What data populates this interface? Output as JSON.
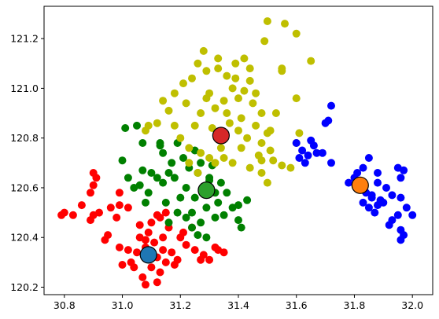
{
  "chart_data": {
    "type": "scatter",
    "title": "",
    "xlabel": "",
    "ylabel": "",
    "xlim": [
      30.73,
      32.07
    ],
    "ylim": [
      120.17,
      121.33
    ],
    "x_ticks": [
      "30.8",
      "31.0",
      "31.2",
      "31.4",
      "31.6",
      "31.8",
      "32.0"
    ],
    "y_ticks": [
      "120.2",
      "120.4",
      "120.6",
      "120.8",
      "121.0",
      "121.2"
    ],
    "grid": false,
    "legend": "none",
    "clusters": [
      {
        "color": "#ff0000",
        "centroid": {
          "x": 31.09,
          "y": 120.33,
          "color": "#1f77b4"
        },
        "x_range": [
          30.78,
          31.36
        ],
        "y_range": [
          120.22,
          120.67
        ],
        "points": [
          [
            31.12,
            120.32
          ],
          [
            31.1,
            120.28
          ],
          [
            31.08,
            120.36
          ],
          [
            31.15,
            120.3
          ],
          [
            31.05,
            120.34
          ],
          [
            31.13,
            120.26
          ],
          [
            31.07,
            120.24
          ],
          [
            31.11,
            120.38
          ],
          [
            31.17,
            120.34
          ],
          [
            31.03,
            120.3
          ],
          [
            31.09,
            120.42
          ],
          [
            31.14,
            120.4
          ],
          [
            31.06,
            120.4
          ],
          [
            31.18,
            120.29
          ],
          [
            31.02,
            120.35
          ],
          [
            31.1,
            120.46
          ],
          [
            31.13,
            120.48
          ],
          [
            31.16,
            120.44
          ],
          [
            30.99,
            120.36
          ],
          [
            31.2,
            120.4
          ],
          [
            31.22,
            120.37
          ],
          [
            31.25,
            120.35
          ],
          [
            31.28,
            120.33
          ],
          [
            31.3,
            120.31
          ],
          [
            31.33,
            120.35
          ],
          [
            31.35,
            120.34
          ],
          [
            31.21,
            120.42
          ],
          [
            31.24,
            120.44
          ],
          [
            31.02,
            120.52
          ],
          [
            30.98,
            120.48
          ],
          [
            30.96,
            120.52
          ],
          [
            30.92,
            120.5
          ],
          [
            30.9,
            120.49
          ],
          [
            30.86,
            120.53
          ],
          [
            30.83,
            120.49
          ],
          [
            30.8,
            120.5
          ],
          [
            30.79,
            120.49
          ],
          [
            30.89,
            120.58
          ],
          [
            30.9,
            120.61
          ],
          [
            30.91,
            120.64
          ],
          [
            30.9,
            120.66
          ],
          [
            30.99,
            120.58
          ],
          [
            30.99,
            120.53
          ],
          [
            30.95,
            120.41
          ],
          [
            30.94,
            120.39
          ],
          [
            30.89,
            120.47
          ],
          [
            31.12,
            120.22
          ],
          [
            31.08,
            120.21
          ],
          [
            31.04,
            120.28
          ],
          [
            31.0,
            120.29
          ],
          [
            31.14,
            120.35
          ],
          [
            31.19,
            120.31
          ],
          [
            31.06,
            120.45
          ],
          [
            31.15,
            120.5
          ],
          [
            31.12,
            120.49
          ],
          [
            31.08,
            120.39
          ],
          [
            31.27,
            120.31
          ],
          [
            31.32,
            120.36
          ]
        ]
      },
      {
        "color": "#008000",
        "centroid": {
          "x": 31.29,
          "y": 120.59,
          "color": "#2ca02c"
        },
        "x_range": [
          30.98,
          31.42
        ],
        "y_range": [
          120.39,
          120.84
        ],
        "points": [
          [
            31.28,
            120.6
          ],
          [
            31.25,
            120.56
          ],
          [
            31.3,
            120.64
          ],
          [
            31.32,
            120.58
          ],
          [
            31.26,
            120.66
          ],
          [
            31.22,
            120.6
          ],
          [
            31.34,
            120.62
          ],
          [
            31.29,
            120.52
          ],
          [
            31.24,
            120.5
          ],
          [
            31.33,
            120.54
          ],
          [
            31.2,
            120.56
          ],
          [
            31.36,
            120.58
          ],
          [
            31.27,
            120.7
          ],
          [
            31.23,
            120.68
          ],
          [
            31.31,
            120.69
          ],
          [
            31.38,
            120.52
          ],
          [
            31.18,
            120.64
          ],
          [
            31.21,
            120.72
          ],
          [
            31.16,
            120.66
          ],
          [
            31.14,
            120.62
          ],
          [
            31.12,
            120.64
          ],
          [
            31.1,
            120.66
          ],
          [
            31.17,
            120.7
          ],
          [
            31.14,
            120.74
          ],
          [
            31.19,
            120.78
          ],
          [
            31.13,
            120.78
          ],
          [
            31.07,
            120.67
          ],
          [
            31.04,
            120.6
          ],
          [
            31.09,
            120.58
          ],
          [
            31.15,
            120.54
          ],
          [
            31.19,
            120.5
          ],
          [
            31.16,
            120.46
          ],
          [
            31.24,
            120.44
          ],
          [
            31.27,
            120.46
          ],
          [
            31.29,
            120.4
          ],
          [
            31.26,
            120.41
          ],
          [
            31.35,
            120.49
          ],
          [
            31.4,
            120.47
          ],
          [
            31.41,
            120.44
          ],
          [
            31.4,
            120.53
          ],
          [
            31.43,
            120.55
          ],
          [
            31.06,
            120.61
          ],
          [
            31.02,
            120.64
          ],
          [
            31.0,
            120.71
          ],
          [
            31.01,
            120.84
          ],
          [
            31.05,
            120.85
          ],
          [
            31.07,
            120.78
          ],
          [
            31.13,
            120.77
          ],
          [
            31.25,
            120.75
          ],
          [
            31.3,
            120.63
          ],
          [
            31.32,
            120.48
          ],
          [
            31.22,
            120.48
          ],
          [
            31.08,
            120.54
          ]
        ]
      },
      {
        "color": "#bfbf00",
        "centroid": {
          "x": 31.34,
          "y": 120.81,
          "color": "#d62728"
        },
        "x_range": [
          31.07,
          31.68
        ],
        "y_range": [
          120.61,
          121.28
        ],
        "points": [
          [
            31.35,
            120.95
          ],
          [
            31.38,
            121.0
          ],
          [
            31.32,
            120.92
          ],
          [
            31.4,
            120.96
          ],
          [
            31.36,
            121.05
          ],
          [
            31.42,
            120.99
          ],
          [
            31.3,
            120.98
          ],
          [
            31.44,
            121.03
          ],
          [
            31.33,
            121.08
          ],
          [
            31.39,
            121.1
          ],
          [
            31.29,
            121.07
          ],
          [
            31.45,
            120.94
          ],
          [
            31.41,
            120.88
          ],
          [
            31.37,
            120.86
          ],
          [
            31.31,
            120.84
          ],
          [
            31.27,
            120.9
          ],
          [
            31.25,
            120.85
          ],
          [
            31.48,
            120.9
          ],
          [
            31.46,
            120.85
          ],
          [
            31.43,
            120.8
          ],
          [
            31.48,
            120.78
          ],
          [
            31.5,
            120.82
          ],
          [
            31.34,
            120.76
          ],
          [
            31.3,
            120.72
          ],
          [
            31.27,
            120.74
          ],
          [
            31.23,
            120.7
          ],
          [
            31.26,
            120.66
          ],
          [
            31.32,
            120.7
          ],
          [
            31.38,
            120.7
          ],
          [
            31.44,
            120.68
          ],
          [
            31.48,
            120.66
          ],
          [
            31.5,
            120.62
          ],
          [
            31.52,
            120.71
          ],
          [
            31.47,
            120.73
          ],
          [
            31.41,
            120.76
          ],
          [
            31.28,
            121.15
          ],
          [
            31.33,
            121.12
          ],
          [
            31.26,
            121.1
          ],
          [
            31.24,
            121.04
          ],
          [
            31.21,
            121.02
          ],
          [
            31.18,
            120.98
          ],
          [
            31.16,
            120.91
          ],
          [
            31.14,
            120.95
          ],
          [
            31.18,
            120.85
          ],
          [
            31.12,
            120.86
          ],
          [
            31.09,
            120.85
          ],
          [
            31.08,
            120.83
          ],
          [
            31.2,
            120.8
          ],
          [
            31.23,
            120.76
          ],
          [
            31.42,
            121.12
          ],
          [
            31.44,
            121.08
          ],
          [
            31.49,
            121.19
          ],
          [
            31.5,
            121.27
          ],
          [
            31.56,
            121.26
          ],
          [
            31.6,
            121.22
          ],
          [
            31.55,
            121.07
          ],
          [
            31.55,
            121.08
          ],
          [
            31.65,
            121.11
          ],
          [
            31.6,
            120.96
          ],
          [
            31.61,
            120.82
          ],
          [
            31.6,
            120.78
          ],
          [
            31.58,
            120.68
          ],
          [
            31.55,
            120.69
          ],
          [
            31.51,
            120.75
          ],
          [
            31.53,
            120.9
          ],
          [
            31.51,
            120.83
          ],
          [
            31.46,
            120.98
          ],
          [
            31.4,
            120.83
          ],
          [
            31.36,
            120.9
          ],
          [
            31.29,
            120.96
          ],
          [
            31.22,
            120.94
          ],
          [
            31.48,
            120.71
          ],
          [
            31.35,
            120.72
          ],
          [
            31.39,
            121.04
          ]
        ]
      },
      {
        "color": "#0000ff",
        "centroid": {
          "x": 31.82,
          "y": 120.61,
          "color": "#ff7f0e"
        },
        "x_range": [
          31.59,
          32.01
        ],
        "y_range": [
          120.39,
          120.93
        ],
        "points": [
          [
            31.62,
            120.75
          ],
          [
            31.64,
            120.73
          ],
          [
            31.66,
            120.77
          ],
          [
            31.61,
            120.72
          ],
          [
            31.65,
            120.79
          ],
          [
            31.63,
            120.7
          ],
          [
            31.67,
            120.74
          ],
          [
            31.6,
            120.78
          ],
          [
            31.71,
            120.87
          ],
          [
            31.7,
            120.86
          ],
          [
            31.72,
            120.93
          ],
          [
            31.69,
            120.74
          ],
          [
            31.72,
            120.7
          ],
          [
            31.84,
            120.58
          ],
          [
            31.86,
            120.56
          ],
          [
            31.83,
            120.54
          ],
          [
            31.88,
            120.53
          ],
          [
            31.85,
            120.52
          ],
          [
            31.9,
            120.54
          ],
          [
            31.87,
            120.5
          ],
          [
            31.89,
            120.55
          ],
          [
            31.8,
            120.64
          ],
          [
            31.78,
            120.62
          ],
          [
            31.81,
            120.66
          ],
          [
            31.83,
            120.68
          ],
          [
            31.85,
            120.72
          ],
          [
            31.88,
            120.66
          ],
          [
            31.91,
            120.6
          ],
          [
            31.93,
            120.57
          ],
          [
            31.95,
            120.68
          ],
          [
            31.96,
            120.64
          ],
          [
            31.97,
            120.67
          ],
          [
            31.96,
            120.56
          ],
          [
            31.98,
            120.52
          ],
          [
            32.0,
            120.49
          ],
          [
            31.95,
            120.49
          ],
          [
            31.92,
            120.45
          ],
          [
            31.93,
            120.47
          ],
          [
            31.96,
            120.43
          ],
          [
            31.97,
            120.41
          ],
          [
            31.96,
            120.39
          ],
          [
            31.86,
            120.57
          ],
          [
            31.88,
            120.62
          ]
        ]
      }
    ]
  }
}
